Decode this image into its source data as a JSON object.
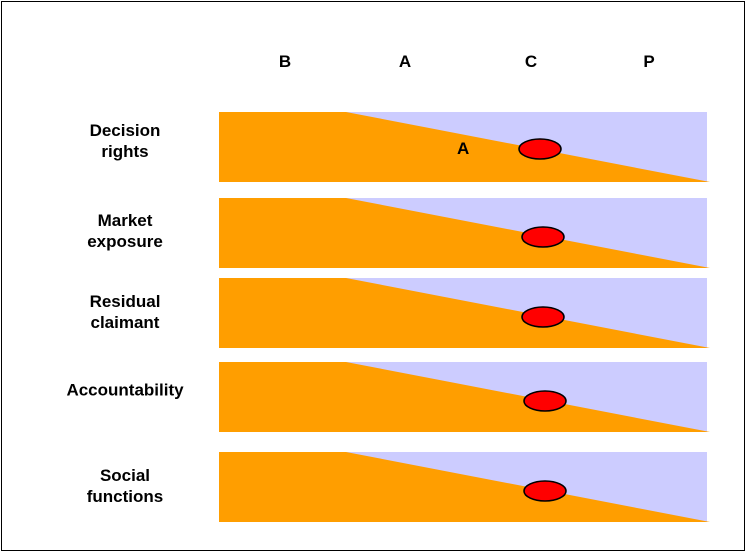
{
  "columns": [
    "B",
    "A",
    "C",
    "P"
  ],
  "rows": [
    {
      "label_lines": [
        "Decision",
        "rights"
      ],
      "position": "C",
      "offset": 0.22
    },
    {
      "label_lines": [
        "Market",
        "exposure"
      ],
      "position": "C",
      "offset": 0.27
    },
    {
      "label_lines": [
        "Residual",
        "claimant"
      ],
      "position": "C",
      "offset": 0.27
    },
    {
      "label_lines": [
        "Accountability"
      ],
      "position": "C",
      "offset": 0.3
    },
    {
      "label_lines": [
        "Social",
        "functions"
      ],
      "position": "C",
      "offset": 0.3
    }
  ],
  "annotation": "A",
  "colors": {
    "orange": "#ff9e00",
    "lavender": "#ccccff",
    "marker": "#ff0000",
    "marker_outline": "#000000"
  }
}
